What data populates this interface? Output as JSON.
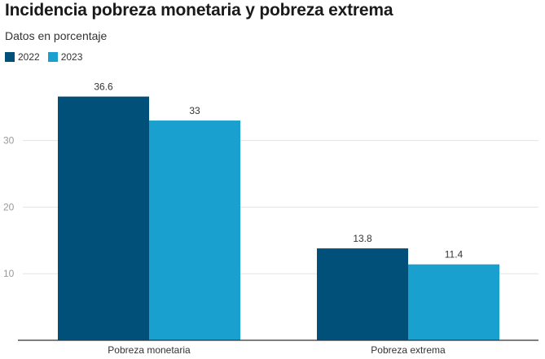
{
  "colors": {
    "series_2022": "#00507a",
    "series_2023": "#1aa0cf",
    "grid": "#e3e3e3",
    "axis": "#333333",
    "tick_text": "#9a9a9a",
    "label_text": "#333333"
  },
  "chart_data": {
    "type": "bar",
    "title": "Incidencia pobreza monetaria y pobreza extrema",
    "subtitle": "Datos en porcentaje",
    "categories": [
      "Pobreza monetaria",
      "Pobreza extrema"
    ],
    "series": [
      {
        "name": "2022",
        "values": [
          36.6,
          13.8
        ],
        "labels": [
          "36.6",
          "13.8"
        ],
        "color": "#00507a"
      },
      {
        "name": "2023",
        "values": [
          33,
          11.4
        ],
        "labels": [
          "33",
          "11.4"
        ],
        "color": "#1aa0cf"
      }
    ],
    "yticks": [
      10,
      20,
      30
    ],
    "ylim": [
      0,
      40
    ],
    "grid": true,
    "legend": "top-left",
    "xlabel": "",
    "ylabel": ""
  }
}
